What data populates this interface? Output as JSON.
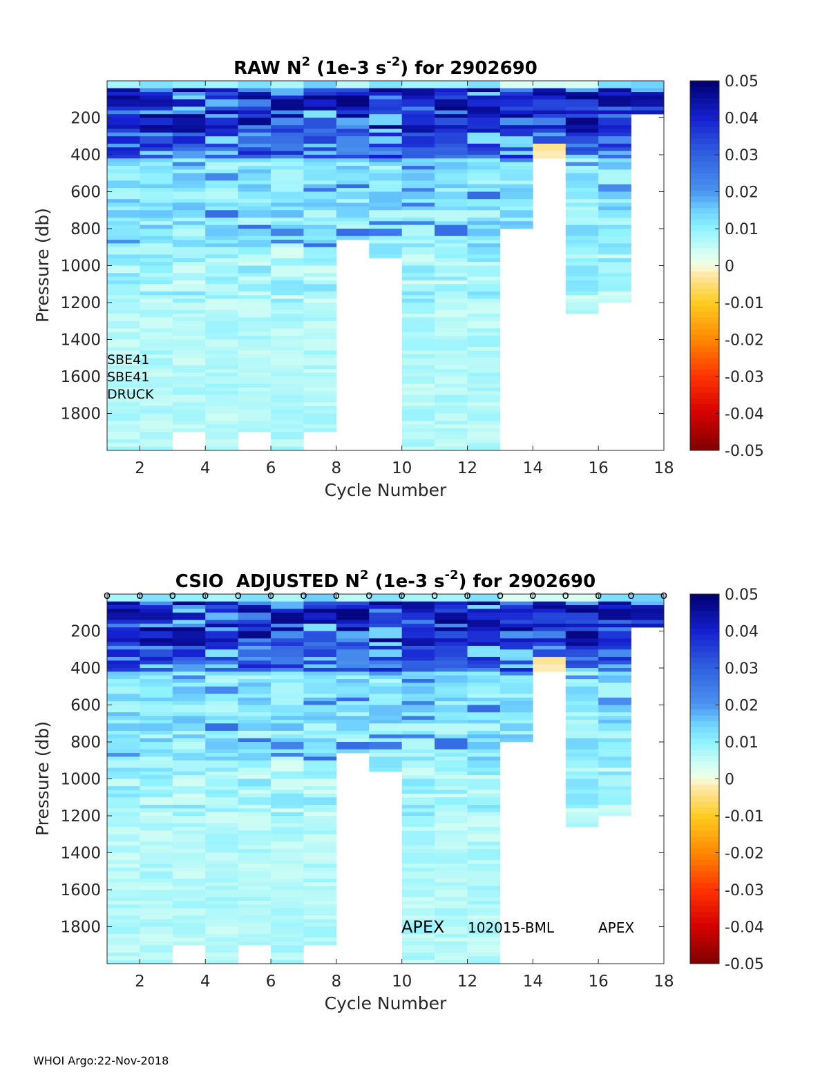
{
  "footer": "WHOI Argo:22-Nov-2018",
  "colormap": {
    "stops": [
      {
        "v": -0.05,
        "c": "#7f0000"
      },
      {
        "v": -0.04,
        "c": "#d40000"
      },
      {
        "v": -0.03,
        "c": "#ff3300"
      },
      {
        "v": -0.02,
        "c": "#ff8800"
      },
      {
        "v": -0.01,
        "c": "#ffcc22"
      },
      {
        "v": -0.002,
        "c": "#ffe9b0"
      },
      {
        "v": 0.0,
        "c": "#f2ffe0"
      },
      {
        "v": 0.003,
        "c": "#dafff2"
      },
      {
        "v": 0.01,
        "c": "#8ff2ff"
      },
      {
        "v": 0.015,
        "c": "#6fd0ff"
      },
      {
        "v": 0.02,
        "c": "#4b94f0"
      },
      {
        "v": 0.03,
        "c": "#3060e0"
      },
      {
        "v": 0.04,
        "c": "#1520d0"
      },
      {
        "v": 0.05,
        "c": "#00006e"
      }
    ]
  },
  "chart_data": [
    {
      "type": "heatmap",
      "title": {
        "prefix": "RAW N",
        "sup1": "2",
        "middle": " (1e-3 s",
        "sup2": "-2",
        "suffix": ") for 2902690"
      },
      "xlabel": "Cycle Number",
      "ylabel": "Pressure (db)",
      "xlim": [
        1,
        18
      ],
      "ylim": [
        2000,
        0
      ],
      "xticks": [
        2,
        4,
        6,
        8,
        10,
        12,
        14,
        16,
        18
      ],
      "yticks": [
        200,
        400,
        600,
        800,
        1000,
        1200,
        1400,
        1600,
        1800
      ],
      "colorbar": {
        "ticks": [
          0.05,
          0.04,
          0.03,
          0.02,
          0.01,
          0,
          -0.01,
          -0.02,
          -0.03,
          -0.04,
          -0.05
        ],
        "tick_labels": [
          "0.05",
          "0.04",
          "0.03",
          "0.02",
          "0.01",
          "0",
          "-0.01",
          "-0.02",
          "-0.03",
          "-0.04",
          "-0.05"
        ]
      },
      "cycles": [
        1,
        2,
        3,
        4,
        5,
        6,
        7,
        8,
        9,
        10,
        11,
        12,
        13,
        14,
        15,
        16,
        17
      ],
      "max_pressure": [
        2000,
        2000,
        1900,
        2000,
        1900,
        2000,
        1900,
        850,
        950,
        2000,
        2000,
        2000,
        800,
        410,
        1250,
        1200,
        180
      ],
      "annotations": [
        "SBE41",
        "SBE41",
        "DRUCK"
      ],
      "profile_markers": false
    },
    {
      "type": "heatmap",
      "title": {
        "prefix": "CSIO  ADJUSTED N",
        "sup1": "2",
        "middle": " (1e-3 s",
        "sup2": "-2",
        "suffix": ") for 2902690"
      },
      "xlabel": "Cycle Number",
      "ylabel": "Pressure (db)",
      "xlim": [
        1,
        18
      ],
      "ylim": [
        2000,
        0
      ],
      "xticks": [
        2,
        4,
        6,
        8,
        10,
        12,
        14,
        16,
        18
      ],
      "yticks": [
        200,
        400,
        600,
        800,
        1000,
        1200,
        1400,
        1600,
        1800
      ],
      "colorbar": {
        "ticks": [
          0.05,
          0.04,
          0.03,
          0.02,
          0.01,
          0,
          -0.01,
          -0.02,
          -0.03,
          -0.04,
          -0.05
        ],
        "tick_labels": [
          "0.05",
          "0.04",
          "0.03",
          "0.02",
          "0.01",
          "0",
          "-0.01",
          "-0.02",
          "-0.03",
          "-0.04",
          "-0.05"
        ]
      },
      "cycles": [
        1,
        2,
        3,
        4,
        5,
        6,
        7,
        8,
        9,
        10,
        11,
        12,
        13,
        14,
        15,
        16,
        17
      ],
      "max_pressure": [
        2000,
        2000,
        1900,
        2000,
        1900,
        2000,
        1900,
        850,
        950,
        2000,
        2000,
        2000,
        800,
        410,
        1250,
        1200,
        180
      ],
      "annotations": [
        "APEX",
        "102015-BML",
        "APEX"
      ],
      "profile_markers": true,
      "marker_symbol": "o",
      "marker_cycles": [
        1,
        2,
        3,
        4,
        5,
        6,
        7,
        8,
        9,
        10,
        11,
        12,
        13,
        14,
        15,
        16,
        17,
        18
      ]
    }
  ]
}
